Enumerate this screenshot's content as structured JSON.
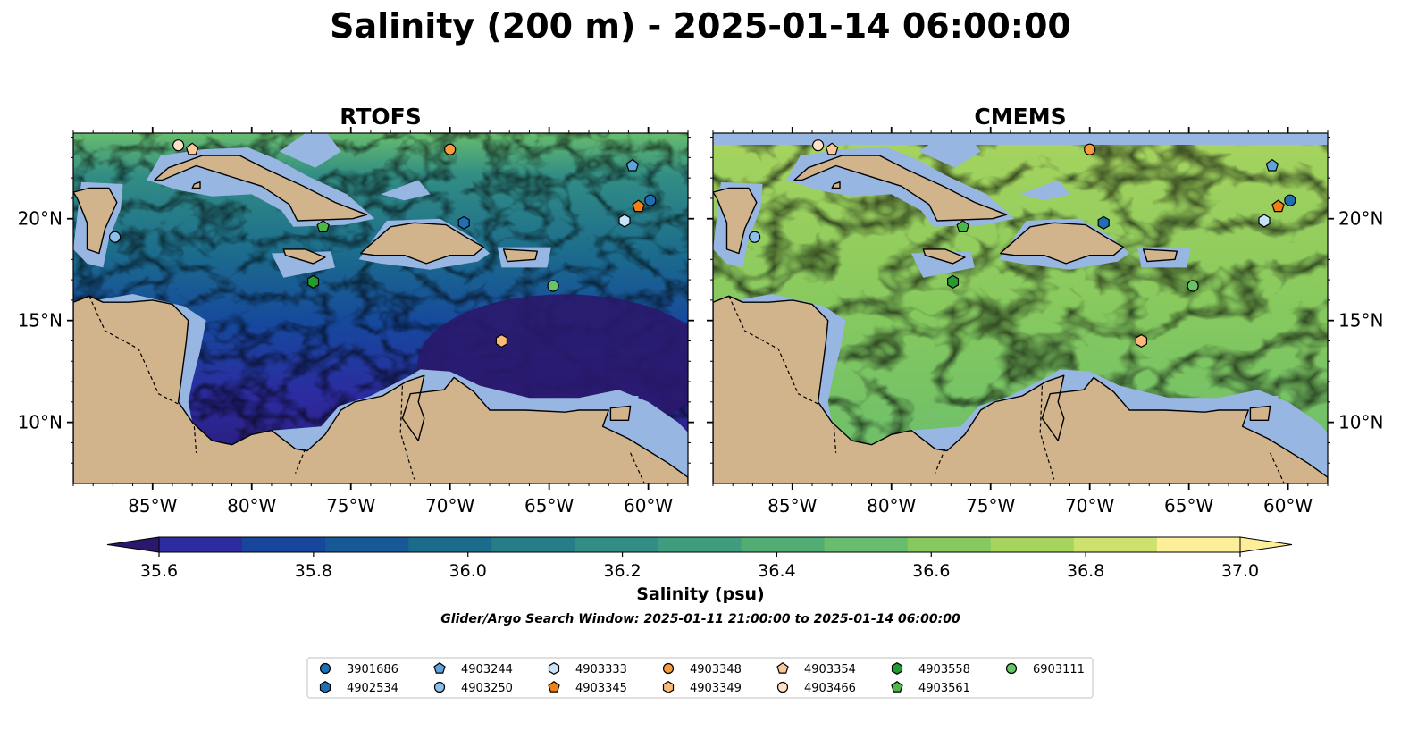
{
  "title": "Salinity (200 m) - 2025-01-14 06:00:00",
  "panels": [
    {
      "title": "RTOFS",
      "scheme": "rtofs"
    },
    {
      "title": "CMEMS",
      "scheme": "cmems"
    }
  ],
  "map": {
    "lon_range": [
      -89,
      -58
    ],
    "lat_range": [
      7,
      24.2
    ],
    "lon_ticks": [
      {
        "value": -85,
        "label": "85°W"
      },
      {
        "value": -80,
        "label": "80°W"
      },
      {
        "value": -75,
        "label": "75°W"
      },
      {
        "value": -70,
        "label": "70°W"
      },
      {
        "value": -65,
        "label": "65°W"
      },
      {
        "value": -60,
        "label": "60°W"
      }
    ],
    "lat_ticks": [
      {
        "value": 10,
        "label": "10°N"
      },
      {
        "value": 15,
        "label": "15°N"
      },
      {
        "value": 20,
        "label": "20°N"
      }
    ],
    "land_color": "#d2b48c",
    "shelf_color": "#97b6e1"
  },
  "colorbar": {
    "label": "Salinity (psu)",
    "min": 35.5,
    "max": 37.0,
    "step": 0.1,
    "ticks": [
      {
        "value": 35.6,
        "label": "35.6"
      },
      {
        "value": 35.8,
        "label": "35.8"
      },
      {
        "value": 36.0,
        "label": "36.0"
      },
      {
        "value": 36.2,
        "label": "36.2"
      },
      {
        "value": 36.4,
        "label": "36.4"
      },
      {
        "value": 36.6,
        "label": "36.6"
      },
      {
        "value": 36.8,
        "label": "36.8"
      },
      {
        "value": 37.0,
        "label": "37.0"
      }
    ],
    "colors": [
      "#2a186c",
      "#2c2ba0",
      "#16479d",
      "#175896",
      "#1b6b8d",
      "#267d88",
      "#328d84",
      "#3f9c7f",
      "#52ad74",
      "#67bd6d",
      "#87c95e",
      "#a7d45e",
      "#cde26c",
      "#fdee99"
    ]
  },
  "search_window": "Glider/Argo Search Window: 2025-01-11 21:00:00 to 2025-01-14 06:00:00",
  "legend": [
    {
      "id": "3901686",
      "marker": "circle",
      "color": "#1f6fb4"
    },
    {
      "id": "4902534",
      "marker": "hexagon",
      "color": "#1f6fb4"
    },
    {
      "id": "4903244",
      "marker": "pentagon",
      "color": "#5ea3db"
    },
    {
      "id": "4903250",
      "marker": "circle",
      "color": "#8cc0ea"
    },
    {
      "id": "4903333",
      "marker": "hexagon",
      "color": "#c6e3f7"
    },
    {
      "id": "4903345",
      "marker": "pentagon",
      "color": "#f57f13"
    },
    {
      "id": "4903348",
      "marker": "circle",
      "color": "#f99b3a"
    },
    {
      "id": "4903349",
      "marker": "hexagon",
      "color": "#fbb978"
    },
    {
      "id": "4903354",
      "marker": "pentagon",
      "color": "#fcc897"
    },
    {
      "id": "4903466",
      "marker": "circle",
      "color": "#fde0c5"
    },
    {
      "id": "4903558",
      "marker": "hexagon",
      "color": "#239b2f"
    },
    {
      "id": "4903561",
      "marker": "pentagon",
      "color": "#4cb848"
    },
    {
      "id": "6903111",
      "marker": "circle",
      "color": "#68c466"
    }
  ],
  "floats": [
    {
      "id": "4903466",
      "lon": -83.7,
      "lat": 23.6
    },
    {
      "id": "4903354",
      "lon": -83.0,
      "lat": 23.4
    },
    {
      "id": "4903348",
      "lon": -70.0,
      "lat": 23.4
    },
    {
      "id": "4903244",
      "lon": -60.8,
      "lat": 22.6
    },
    {
      "id": "3901686",
      "lon": -59.9,
      "lat": 20.9
    },
    {
      "id": "4903345",
      "lon": -60.5,
      "lat": 20.6
    },
    {
      "id": "4903333",
      "lon": -61.2,
      "lat": 19.9
    },
    {
      "id": "4902534",
      "lon": -69.3,
      "lat": 19.8
    },
    {
      "id": "4903561",
      "lon": -76.4,
      "lat": 19.6
    },
    {
      "id": "4903250",
      "lon": -86.9,
      "lat": 19.1
    },
    {
      "id": "4903558",
      "lon": -76.9,
      "lat": 16.9
    },
    {
      "id": "6903111",
      "lon": -64.8,
      "lat": 16.7
    },
    {
      "id": "4903349",
      "lon": -67.4,
      "lat": 14.0
    }
  ]
}
